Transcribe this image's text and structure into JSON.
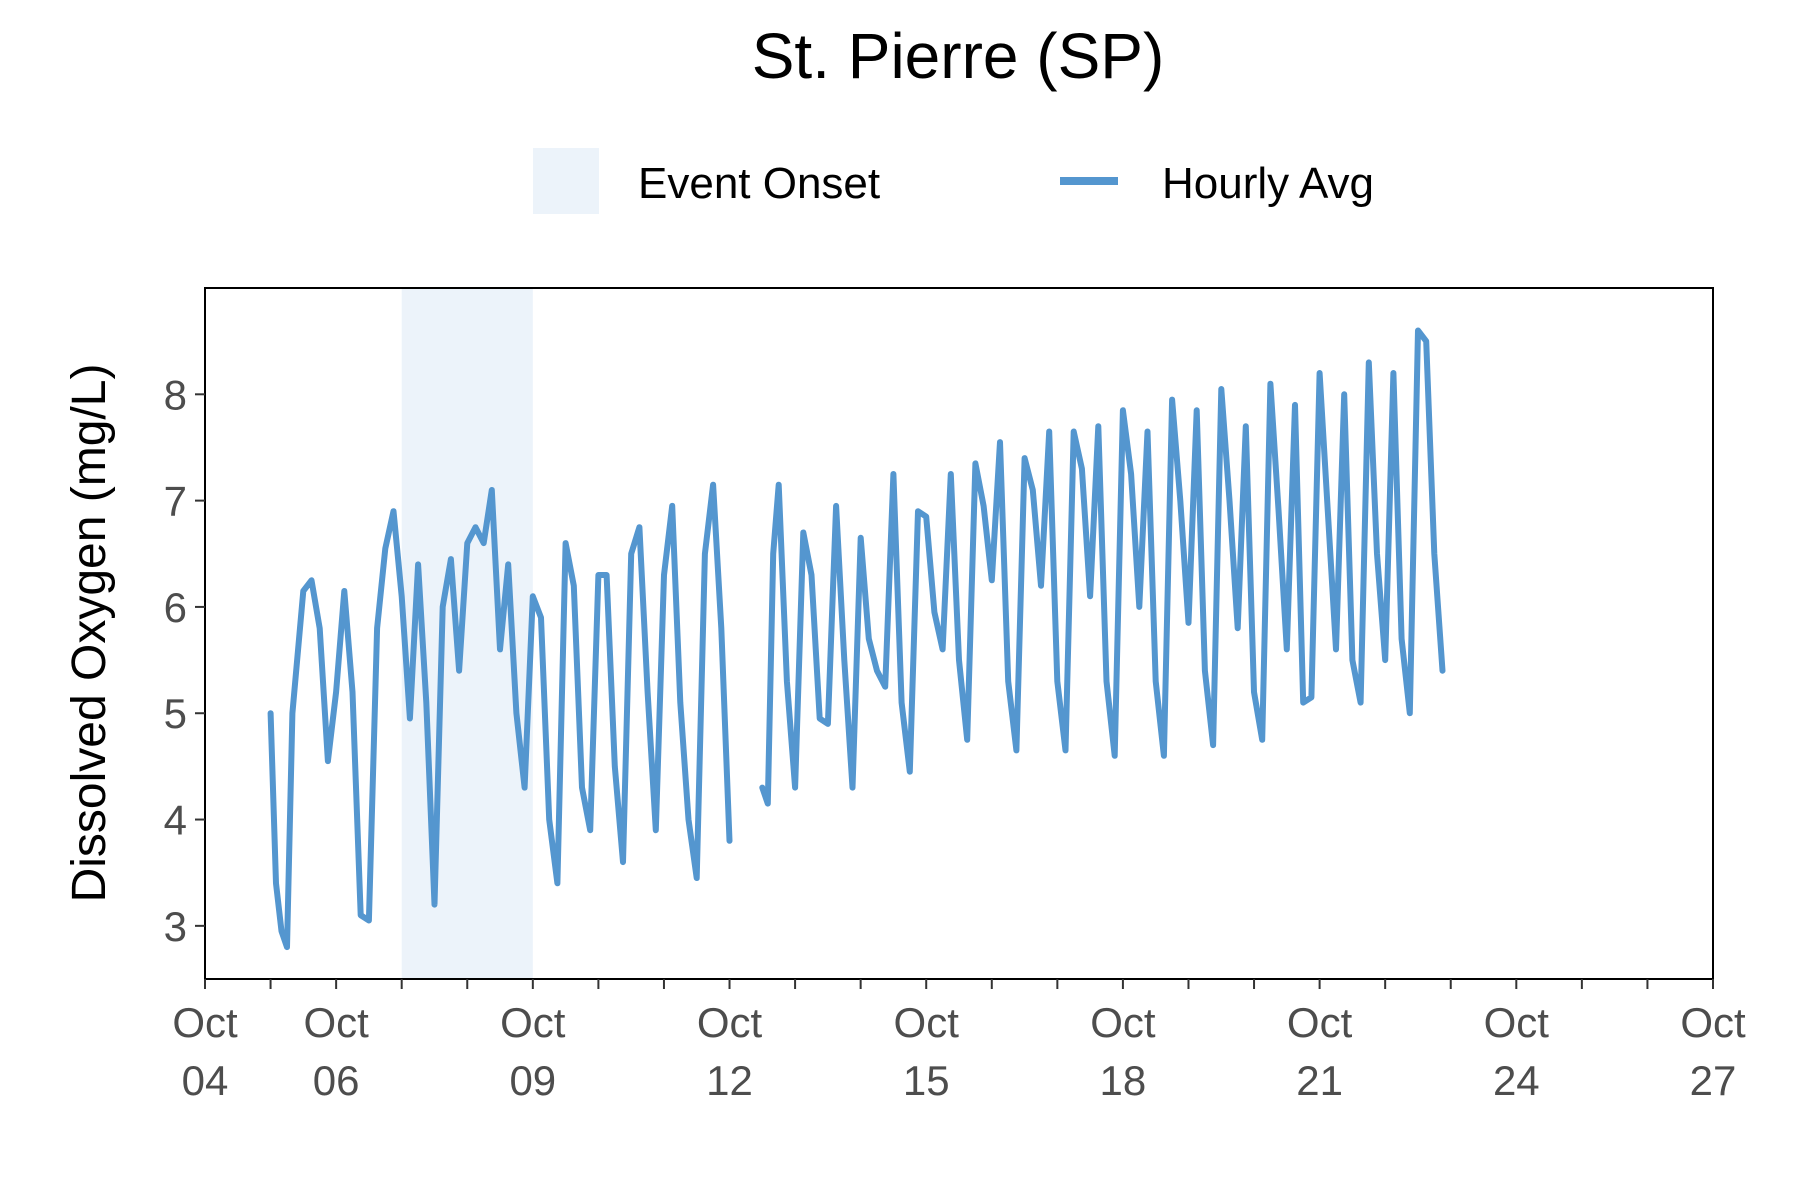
{
  "chart_data": {
    "type": "line",
    "title": "St. Pierre (SP)",
    "xlabel": "",
    "ylabel": "Dissolved Oxygen (mg/L)",
    "x_type": "date",
    "xlim": [
      "2023-10-04",
      "2023-10-27"
    ],
    "ylim": [
      2.5,
      9.0
    ],
    "x_ticks": [
      {
        "date": "2023-10-04",
        "label": [
          "Oct",
          "04"
        ]
      },
      {
        "date": "2023-10-06",
        "label": [
          "Oct",
          "06"
        ]
      },
      {
        "date": "2023-10-09",
        "label": [
          "Oct",
          "09"
        ]
      },
      {
        "date": "2023-10-12",
        "label": [
          "Oct",
          "12"
        ]
      },
      {
        "date": "2023-10-15",
        "label": [
          "Oct",
          "15"
        ]
      },
      {
        "date": "2023-10-18",
        "label": [
          "Oct",
          "18"
        ]
      },
      {
        "date": "2023-10-21",
        "label": [
          "Oct",
          "21"
        ]
      },
      {
        "date": "2023-10-24",
        "label": [
          "Oct",
          "24"
        ]
      },
      {
        "date": "2023-10-27",
        "label": [
          "Oct",
          "27"
        ]
      }
    ],
    "y_ticks": [
      3,
      4,
      5,
      6,
      7,
      8
    ],
    "grid": false,
    "legend": {
      "placement": "top",
      "entries": [
        "Event Onset",
        "Hourly Avg"
      ]
    },
    "colors": {
      "line": "#5496cf",
      "event": "#ecf3fa",
      "frame": "#000000"
    },
    "event_onset": {
      "name": "Event Onset",
      "start": "2023-10-07T00:00",
      "end": "2023-10-09T00:00"
    },
    "series": [
      {
        "name": "Hourly Avg",
        "points": [
          [
            "2023-10-05T00:00",
            5.0
          ],
          [
            "2023-10-05T02:00",
            3.4
          ],
          [
            "2023-10-05T04:00",
            2.95
          ],
          [
            "2023-10-05T06:00",
            2.8
          ],
          [
            "2023-10-05T08:00",
            5.0
          ],
          [
            "2023-10-05T12:00",
            6.15
          ],
          [
            "2023-10-05T15:00",
            6.25
          ],
          [
            "2023-10-05T18:00",
            5.8
          ],
          [
            "2023-10-05T21:00",
            4.55
          ],
          [
            "2023-10-06T00:00",
            5.2
          ],
          [
            "2023-10-06T03:00",
            6.15
          ],
          [
            "2023-10-06T06:00",
            5.2
          ],
          [
            "2023-10-06T09:00",
            3.1
          ],
          [
            "2023-10-06T12:00",
            3.05
          ],
          [
            "2023-10-06T15:00",
            5.8
          ],
          [
            "2023-10-06T18:00",
            6.55
          ],
          [
            "2023-10-06T21:00",
            6.9
          ],
          [
            "2023-10-07T00:00",
            6.1
          ],
          [
            "2023-10-07T03:00",
            4.95
          ],
          [
            "2023-10-07T06:00",
            6.4
          ],
          [
            "2023-10-07T09:00",
            5.1
          ],
          [
            "2023-10-07T12:00",
            3.2
          ],
          [
            "2023-10-07T15:00",
            6.0
          ],
          [
            "2023-10-07T18:00",
            6.45
          ],
          [
            "2023-10-07T21:00",
            5.4
          ],
          [
            "2023-10-08T00:00",
            6.6
          ],
          [
            "2023-10-08T03:00",
            6.75
          ],
          [
            "2023-10-08T06:00",
            6.6
          ],
          [
            "2023-10-08T09:00",
            7.1
          ],
          [
            "2023-10-08T12:00",
            5.6
          ],
          [
            "2023-10-08T15:00",
            6.4
          ],
          [
            "2023-10-08T18:00",
            5.0
          ],
          [
            "2023-10-08T21:00",
            4.3
          ],
          [
            "2023-10-09T00:00",
            6.1
          ],
          [
            "2023-10-09T03:00",
            5.9
          ],
          [
            "2023-10-09T06:00",
            4.0
          ],
          [
            "2023-10-09T09:00",
            3.4
          ],
          [
            "2023-10-09T12:00",
            6.6
          ],
          [
            "2023-10-09T15:00",
            6.2
          ],
          [
            "2023-10-09T18:00",
            4.3
          ],
          [
            "2023-10-09T21:00",
            3.9
          ],
          [
            "2023-10-10T00:00",
            6.3
          ],
          [
            "2023-10-10T03:00",
            6.3
          ],
          [
            "2023-10-10T06:00",
            4.5
          ],
          [
            "2023-10-10T09:00",
            3.6
          ],
          [
            "2023-10-10T12:00",
            6.5
          ],
          [
            "2023-10-10T15:00",
            6.75
          ],
          [
            "2023-10-10T18:00",
            5.2
          ],
          [
            "2023-10-10T21:00",
            3.9
          ],
          [
            "2023-10-11T00:00",
            6.3
          ],
          [
            "2023-10-11T03:00",
            6.95
          ],
          [
            "2023-10-11T06:00",
            5.1
          ],
          [
            "2023-10-11T09:00",
            4.0
          ],
          [
            "2023-10-11T12:00",
            3.45
          ],
          [
            "2023-10-11T15:00",
            6.5
          ],
          [
            "2023-10-11T18:00",
            7.15
          ],
          [
            "2023-10-11T21:00",
            5.8
          ],
          [
            "2023-10-12T00:00",
            3.8
          ],
          [
            "2023-10-12T12:00",
            4.3
          ],
          [
            "2023-10-12T14:00",
            4.15
          ],
          [
            "2023-10-12T16:00",
            6.5
          ],
          [
            "2023-10-12T18:00",
            7.15
          ],
          [
            "2023-10-12T21:00",
            5.3
          ],
          [
            "2023-10-13T00:00",
            4.3
          ],
          [
            "2023-10-13T03:00",
            6.7
          ],
          [
            "2023-10-13T06:00",
            6.3
          ],
          [
            "2023-10-13T09:00",
            4.95
          ],
          [
            "2023-10-13T12:00",
            4.9
          ],
          [
            "2023-10-13T15:00",
            6.95
          ],
          [
            "2023-10-13T18:00",
            5.5
          ],
          [
            "2023-10-13T21:00",
            4.3
          ],
          [
            "2023-10-14T00:00",
            6.65
          ],
          [
            "2023-10-14T03:00",
            5.7
          ],
          [
            "2023-10-14T06:00",
            5.4
          ],
          [
            "2023-10-14T09:00",
            5.25
          ],
          [
            "2023-10-14T12:00",
            7.25
          ],
          [
            "2023-10-14T15:00",
            5.1
          ],
          [
            "2023-10-14T18:00",
            4.45
          ],
          [
            "2023-10-14T21:00",
            6.9
          ],
          [
            "2023-10-15T00:00",
            6.85
          ],
          [
            "2023-10-15T03:00",
            5.95
          ],
          [
            "2023-10-15T06:00",
            5.6
          ],
          [
            "2023-10-15T09:00",
            7.25
          ],
          [
            "2023-10-15T12:00",
            5.5
          ],
          [
            "2023-10-15T15:00",
            4.75
          ],
          [
            "2023-10-15T18:00",
            7.35
          ],
          [
            "2023-10-15T21:00",
            6.95
          ],
          [
            "2023-10-16T00:00",
            6.25
          ],
          [
            "2023-10-16T03:00",
            7.55
          ],
          [
            "2023-10-16T06:00",
            5.3
          ],
          [
            "2023-10-16T09:00",
            4.65
          ],
          [
            "2023-10-16T12:00",
            7.4
          ],
          [
            "2023-10-16T15:00",
            7.1
          ],
          [
            "2023-10-16T18:00",
            6.2
          ],
          [
            "2023-10-16T21:00",
            7.65
          ],
          [
            "2023-10-17T00:00",
            5.3
          ],
          [
            "2023-10-17T03:00",
            4.65
          ],
          [
            "2023-10-17T06:00",
            7.65
          ],
          [
            "2023-10-17T09:00",
            7.3
          ],
          [
            "2023-10-17T12:00",
            6.1
          ],
          [
            "2023-10-17T15:00",
            7.7
          ],
          [
            "2023-10-17T18:00",
            5.3
          ],
          [
            "2023-10-17T21:00",
            4.6
          ],
          [
            "2023-10-18T00:00",
            7.85
          ],
          [
            "2023-10-18T03:00",
            7.25
          ],
          [
            "2023-10-18T06:00",
            6.0
          ],
          [
            "2023-10-18T09:00",
            7.65
          ],
          [
            "2023-10-18T12:00",
            5.3
          ],
          [
            "2023-10-18T15:00",
            4.6
          ],
          [
            "2023-10-18T18:00",
            7.95
          ],
          [
            "2023-10-18T21:00",
            7.0
          ],
          [
            "2023-10-19T00:00",
            5.85
          ],
          [
            "2023-10-19T03:00",
            7.85
          ],
          [
            "2023-10-19T06:00",
            5.4
          ],
          [
            "2023-10-19T09:00",
            4.7
          ],
          [
            "2023-10-19T12:00",
            8.05
          ],
          [
            "2023-10-19T15:00",
            7.0
          ],
          [
            "2023-10-19T18:00",
            5.8
          ],
          [
            "2023-10-19T21:00",
            7.7
          ],
          [
            "2023-10-20T00:00",
            5.2
          ],
          [
            "2023-10-20T03:00",
            4.75
          ],
          [
            "2023-10-20T06:00",
            8.1
          ],
          [
            "2023-10-20T09:00",
            6.9
          ],
          [
            "2023-10-20T12:00",
            5.6
          ],
          [
            "2023-10-20T15:00",
            7.9
          ],
          [
            "2023-10-20T18:00",
            5.1
          ],
          [
            "2023-10-20T21:00",
            5.15
          ],
          [
            "2023-10-21T00:00",
            8.2
          ],
          [
            "2023-10-21T03:00",
            6.9
          ],
          [
            "2023-10-21T06:00",
            5.6
          ],
          [
            "2023-10-21T09:00",
            8.0
          ],
          [
            "2023-10-21T12:00",
            5.5
          ],
          [
            "2023-10-21T15:00",
            5.1
          ],
          [
            "2023-10-21T18:00",
            8.3
          ],
          [
            "2023-10-21T21:00",
            6.5
          ],
          [
            "2023-10-22T00:00",
            5.5
          ],
          [
            "2023-10-22T03:00",
            8.2
          ],
          [
            "2023-10-22T06:00",
            5.7
          ],
          [
            "2023-10-22T09:00",
            5.0
          ],
          [
            "2023-10-22T12:00",
            8.6
          ],
          [
            "2023-10-22T15:00",
            8.5
          ],
          [
            "2023-10-22T18:00",
            6.5
          ],
          [
            "2023-10-22T21:00",
            5.4
          ]
        ]
      }
    ]
  }
}
